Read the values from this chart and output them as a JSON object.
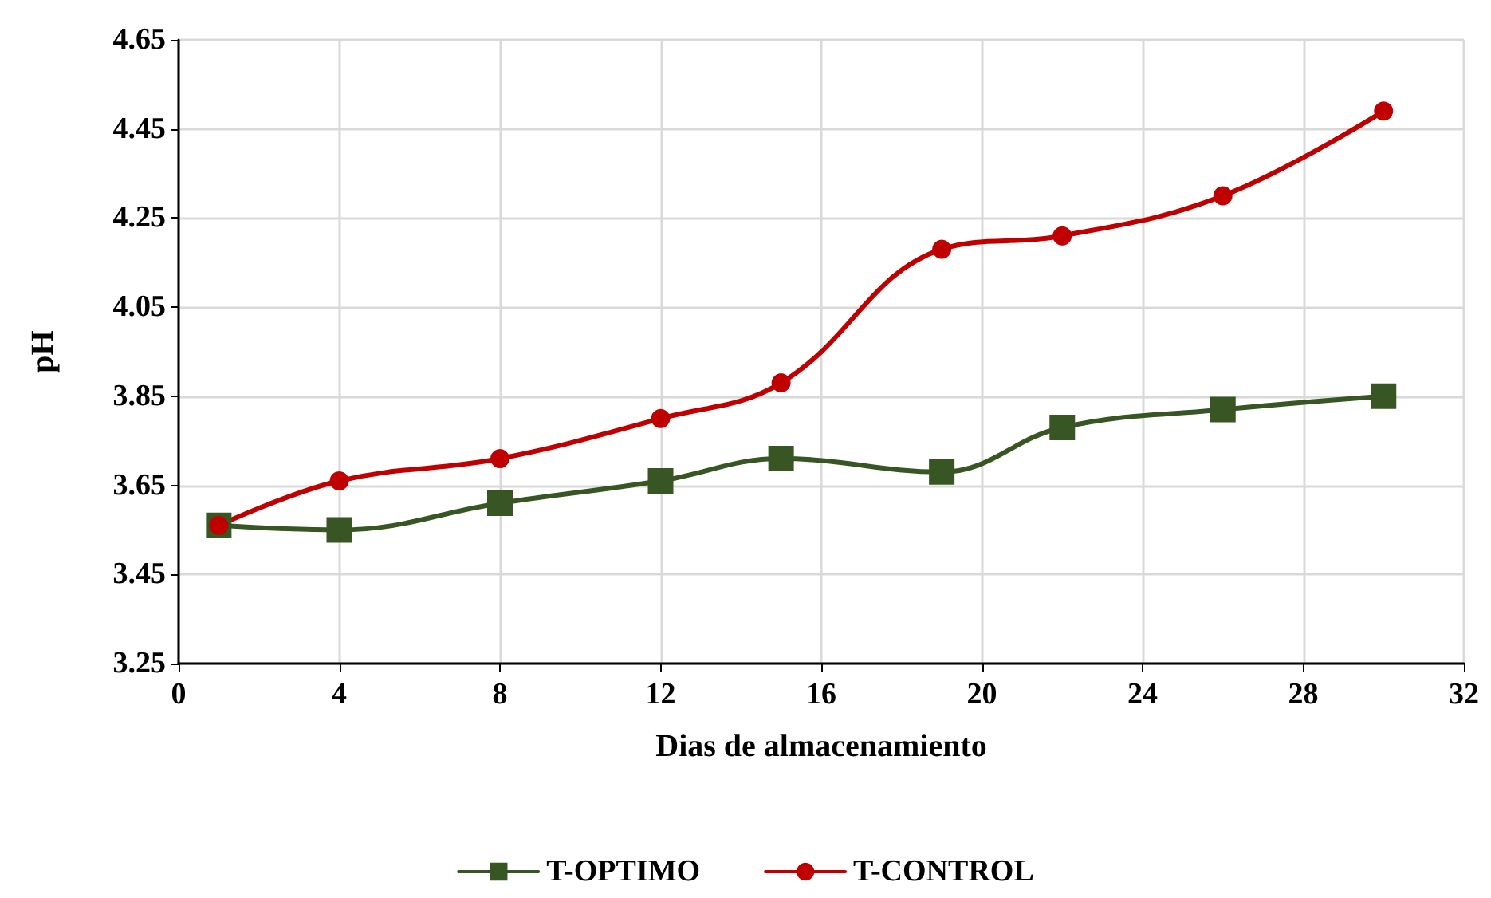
{
  "chart_data": {
    "type": "line",
    "xlabel": "Dias de almacenamiento",
    "ylabel": "pH",
    "x": [
      1,
      4,
      8,
      12,
      15,
      19,
      22,
      26,
      30
    ],
    "series": [
      {
        "name": "T-OPTIMO",
        "color": "#375623",
        "marker": "square",
        "values": [
          3.56,
          3.55,
          3.61,
          3.66,
          3.71,
          3.68,
          3.78,
          3.82,
          3.85
        ]
      },
      {
        "name": "T-CONTROL",
        "color": "#c00000",
        "marker": "circle",
        "values": [
          3.56,
          3.66,
          3.71,
          3.8,
          3.88,
          4.18,
          4.21,
          4.3,
          4.49
        ]
      }
    ],
    "xlim": [
      0,
      32
    ],
    "xticks": [
      0,
      4,
      8,
      12,
      16,
      20,
      24,
      28,
      32
    ],
    "ylim": [
      3.25,
      4.65
    ],
    "yticks": [
      3.25,
      3.45,
      3.65,
      3.85,
      4.05,
      4.25,
      4.45,
      4.65
    ],
    "grid": true,
    "legend": "bottom",
    "line_style": "solid"
  }
}
